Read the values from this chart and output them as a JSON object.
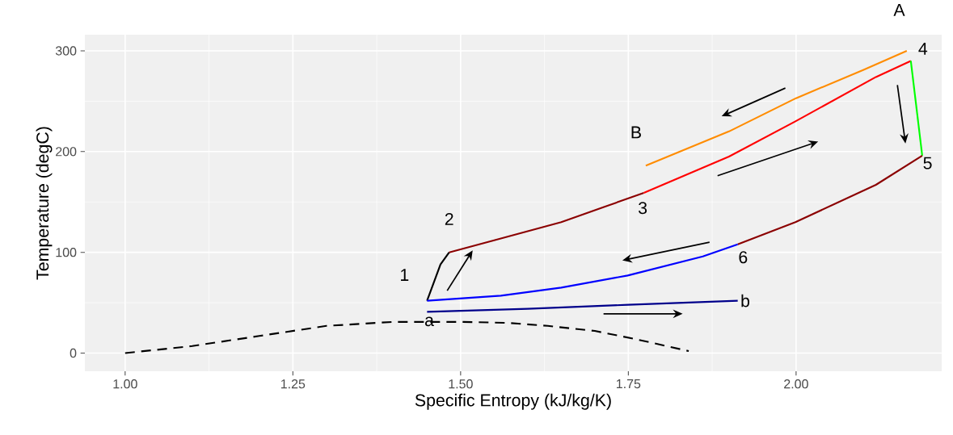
{
  "chart_data": {
    "type": "line",
    "xlabel": "Specific Entropy (kJ/kg/K)",
    "ylabel": "Temperature (degC)",
    "xlim": [
      0.94,
      2.217
    ],
    "ylim": [
      -18,
      316
    ],
    "xticks": [
      {
        "value": 1,
        "label": "1.00"
      },
      {
        "value": 1.25,
        "label": "1.25"
      },
      {
        "value": 1.5,
        "label": "1.50"
      },
      {
        "value": 1.75,
        "label": "1.75"
      },
      {
        "value": 2,
        "label": "2.00"
      }
    ],
    "yticks": [
      0,
      100,
      200,
      300
    ],
    "grid": true,
    "marker": "none",
    "series": [
      {
        "color": "#000000",
        "line_style": "dashed",
        "x": [
          1.0,
          1.1,
          1.2,
          1.3,
          1.4,
          1.5,
          1.57,
          1.63,
          1.7,
          1.76,
          1.84
        ],
        "values": [
          0,
          7,
          17,
          27,
          31,
          31,
          30,
          27,
          22,
          14,
          2
        ]
      },
      {
        "color": "#000000",
        "x": [
          1.45,
          1.46,
          1.47,
          1.483
        ],
        "values": [
          52,
          70,
          88,
          100
        ]
      },
      {
        "color": "#8b0000",
        "x": [
          1.483,
          1.55,
          1.65,
          1.773
        ],
        "values": [
          100,
          112,
          130,
          159
        ]
      },
      {
        "color": "#ff0000",
        "x": [
          1.773,
          1.9,
          1.999,
          2.119,
          2.171
        ],
        "values": [
          159,
          195,
          230,
          274,
          290
        ]
      },
      {
        "color": "#00ff00",
        "x": [
          2.171,
          2.188
        ],
        "values": [
          290,
          196
        ]
      },
      {
        "color": "#8b0000",
        "x": [
          2.188,
          2.119,
          1.999,
          1.913
        ],
        "values": [
          196,
          167,
          130,
          108
        ]
      },
      {
        "color": "#0000ff",
        "x": [
          1.913,
          1.861,
          1.749,
          1.65,
          1.56,
          1.45
        ],
        "values": [
          108,
          96,
          77,
          65,
          57,
          52
        ]
      },
      {
        "color": "#00008b",
        "x": [
          1.45,
          1.6,
          1.75,
          1.913
        ],
        "values": [
          41,
          44,
          48,
          52
        ]
      },
      {
        "color": "#ff8c00",
        "x": [
          1.776,
          1.9,
          2.0,
          2.1,
          2.165
        ],
        "values": [
          186,
          220,
          253,
          281,
          300
        ]
      }
    ],
    "annotations": [
      {
        "text": "1",
        "x": 1.45,
        "y": 52
      },
      {
        "text": "2",
        "x": 1.483,
        "y": 100
      },
      {
        "text": "3",
        "x": 1.773,
        "y": 159
      },
      {
        "text": "4",
        "x": 2.165,
        "y": 300
      },
      {
        "text": "5",
        "x": 2.188,
        "y": 196
      },
      {
        "text": "6",
        "x": 1.913,
        "y": 108
      },
      {
        "text": "a",
        "x": 1.45,
        "y": 41
      },
      {
        "text": "b",
        "x": 1.913,
        "y": 52
      },
      {
        "text": "B",
        "x": 1.776,
        "y": 186
      },
      {
        "text": "A",
        "x": 2.165,
        "y": 300
      }
    ]
  }
}
